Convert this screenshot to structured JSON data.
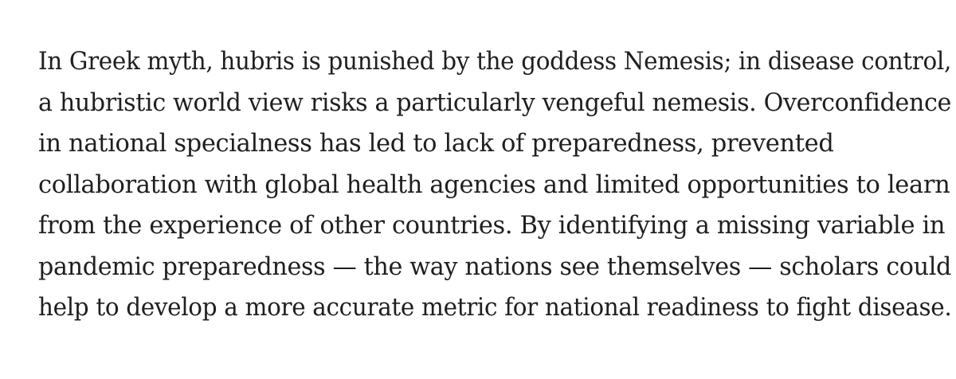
{
  "article": {
    "paragraph_lines": [
      "In Greek myth, hubris is punished by the goddess Nemesis; in disease control,",
      "a hubristic world view risks a particularly vengeful nemesis. Overconfidence",
      "in national specialness has led to lack of preparedness, prevented",
      "collaboration with global health agencies and limited opportunities to learn",
      "from the experience of other countries. By identifying a missing variable in",
      "pandemic preparedness — the way nations see themselves — scholars could",
      "help to develop a more accurate metric for national readiness to fight disease."
    ]
  }
}
